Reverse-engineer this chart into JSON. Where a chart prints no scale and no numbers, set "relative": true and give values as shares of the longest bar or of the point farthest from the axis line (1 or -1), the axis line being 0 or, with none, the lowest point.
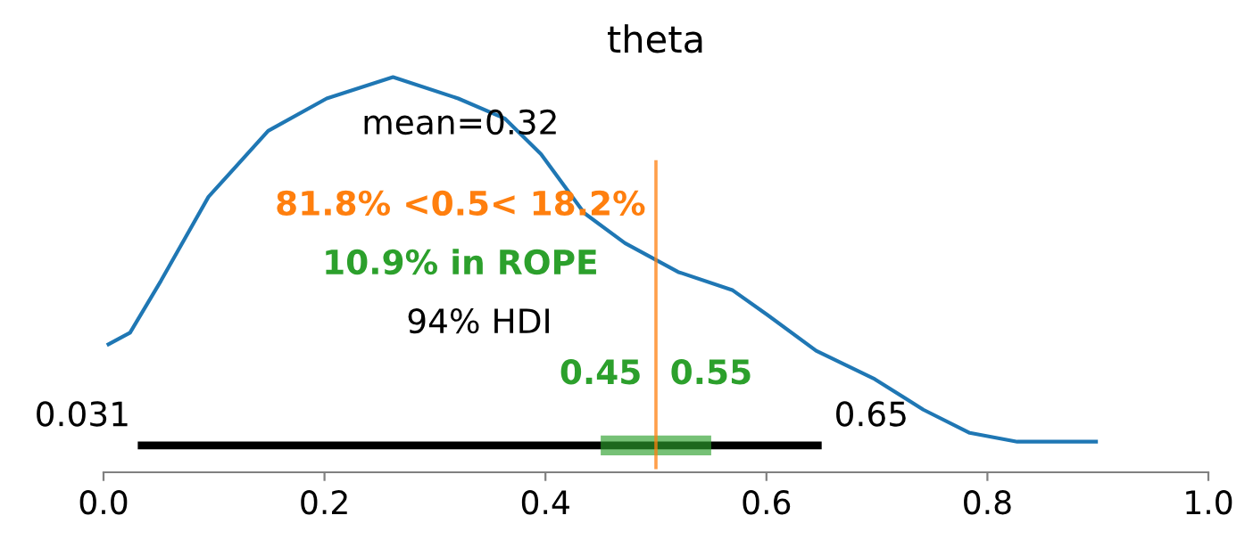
{
  "chart_data": {
    "type": "line",
    "title": "theta",
    "relative": true,
    "xlim": [
      0,
      1
    ],
    "xticks": [
      {
        "value": 0,
        "label": "0.0"
      },
      0.2,
      0.4,
      0.6,
      0.8,
      {
        "value": 1,
        "label": "1.0"
      }
    ],
    "tick_labels": "x",
    "grid": false,
    "legend": false,
    "series": [
      {
        "color": "#1f77b4",
        "x": [
          0.003,
          0.024,
          0.052,
          0.095,
          0.149,
          0.202,
          0.262,
          0.321,
          0.363,
          0.396,
          0.435,
          0.472,
          0.52,
          0.569,
          0.601,
          0.645,
          0.698,
          0.742,
          0.784,
          0.827,
          0.9
        ],
        "values": [
          0.272,
          0.306,
          0.447,
          0.675,
          0.854,
          0.942,
          1,
          0.942,
          0.888,
          0.791,
          0.631,
          0.549,
          0.471,
          0.422,
          0.354,
          0.257,
          0.18,
          0.097,
          0.034,
          0.01,
          0.01
        ]
      },
      {
        "color": "#000000",
        "x": [
          0.031,
          0.65
        ],
        "values": [
          0,
          0
        ]
      },
      {
        "color": "#2ca02c",
        "x": [
          0.45,
          0.55
        ],
        "values": [
          0,
          0
        ]
      }
    ],
    "ref_lines": [
      {
        "axis": "x",
        "value": 0.5,
        "label": "81.8% <0.5< 18.2%",
        "color": "#ff7f0e"
      }
    ],
    "annotations": [
      "mean=0.32",
      "10.9% in ROPE",
      "94% HDI",
      {
        "text": "0.031",
        "x": 0.031,
        "y": 0
      },
      {
        "text": "0.65",
        "x": 0.65,
        "y": 0
      },
      {
        "text": "0.45",
        "x": 0.45,
        "y": 0
      },
      {
        "text": "0.55",
        "x": 0.55,
        "y": 0
      }
    ]
  }
}
